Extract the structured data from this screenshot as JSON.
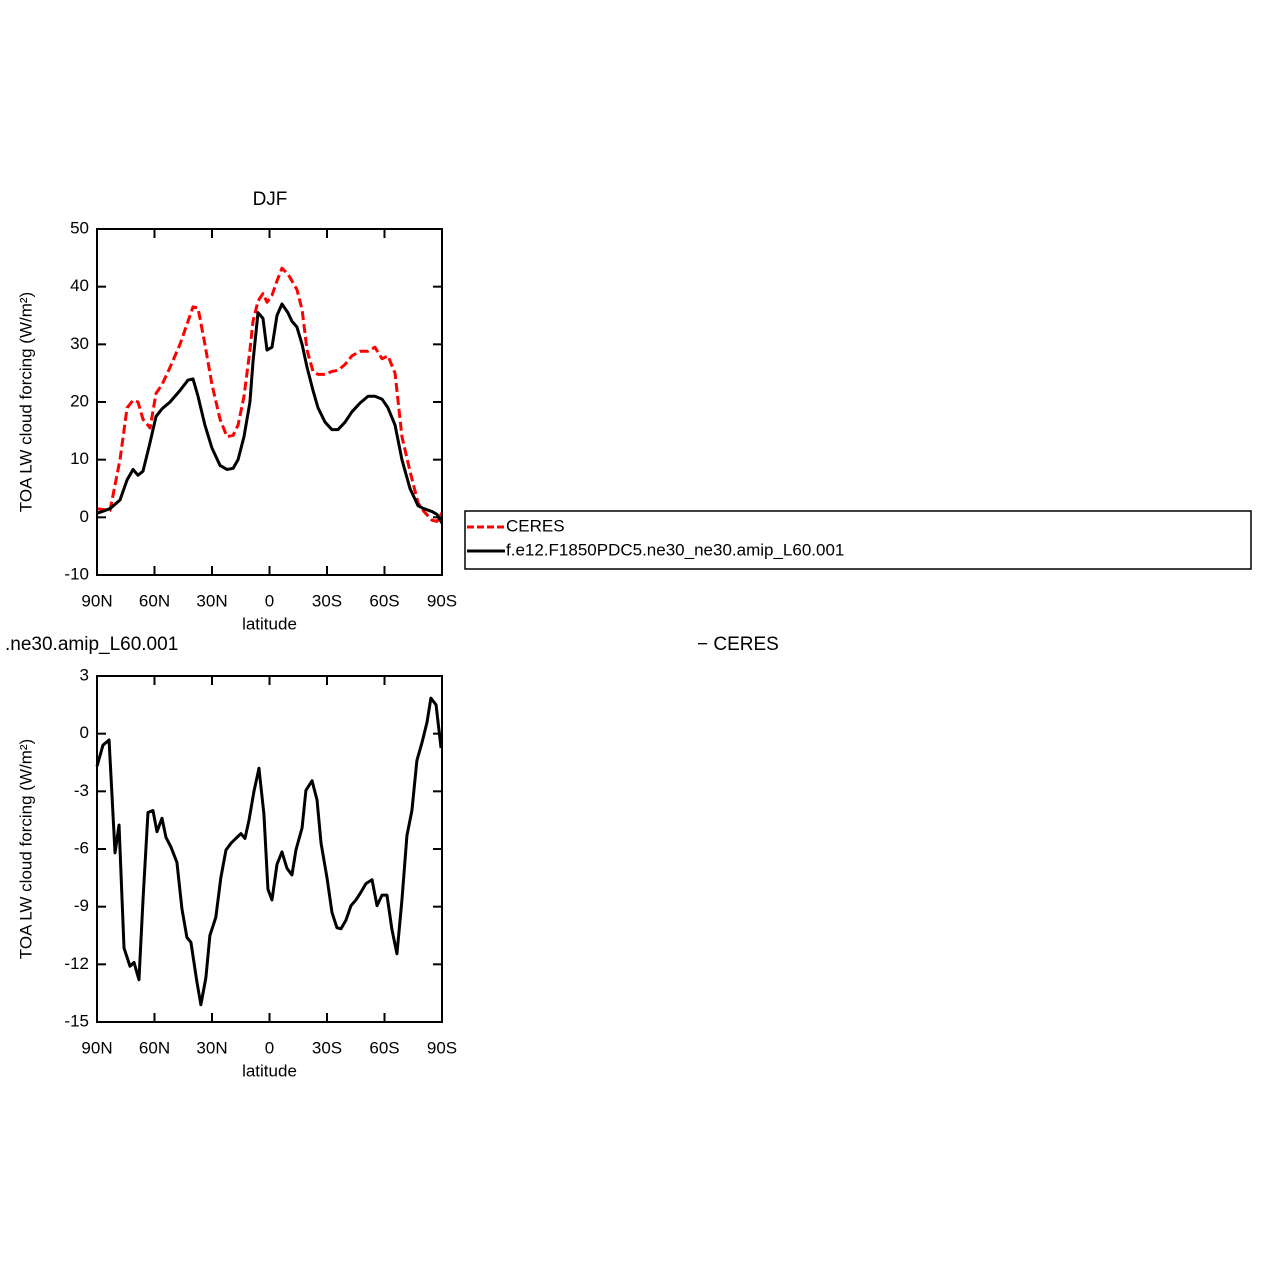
{
  "chart_data": [
    {
      "type": "line",
      "title": "DJF",
      "xlabel": "latitude",
      "ylabel": "TOA LW cloud forcing (W/m²)",
      "x": [
        90.0,
        83.2,
        78.0,
        74.3,
        71.2,
        68.6,
        66.0,
        62.3,
        59.2,
        56.1,
        51.9,
        46.7,
        42.5,
        39.9,
        37.3,
        33.7,
        30.0,
        25.8,
        22.2,
        19.0,
        16.4,
        13.3,
        10.2,
        8.6,
        6.0,
        3.4,
        1.3,
        -1.3,
        -3.9,
        -6.5,
        -9.6,
        -11.7,
        -14.3,
        -17.0,
        -19.6,
        -22.7,
        -25.3,
        -29.0,
        -32.6,
        -35.7,
        -39.4,
        -43.0,
        -47.2,
        -51.4,
        -55.0,
        -58.7,
        -61.8,
        -65.5,
        -69.1,
        -73.3,
        -77.5,
        -80.6,
        -84.8,
        -87.4,
        -90.0
      ],
      "series": [
        {
          "name": "CERES",
          "color": "#ff0000",
          "linestyle": "dashed",
          "values": [
            1.5,
            1.2,
            10,
            19,
            20.3,
            20,
            17,
            15.5,
            21.5,
            23,
            26,
            30,
            34,
            36.5,
            36.3,
            30,
            23,
            17,
            14,
            14.2,
            16,
            21,
            29,
            34,
            37.5,
            38.8,
            37.3,
            38.5,
            41,
            43.2,
            42.2,
            41,
            39.5,
            36,
            29,
            25.3,
            24.8,
            24.8,
            25.3,
            25.5,
            26.5,
            28,
            28.8,
            28.8,
            29.5,
            27.5,
            28,
            25,
            14,
            8,
            2.5,
            1,
            -0.5,
            -0.7,
            0.8
          ]
        },
        {
          "name": "f.e12.F1850PDC5.ne30_ne30.amip_L60.001",
          "color": "#000000",
          "linestyle": "solid",
          "values": [
            0.7,
            1.5,
            3,
            6.5,
            8.3,
            7.3,
            8,
            13,
            17.5,
            18.8,
            20,
            22,
            23.8,
            24,
            21,
            16,
            12,
            9,
            8.3,
            8.5,
            10,
            14,
            20,
            27,
            35.5,
            34.5,
            29,
            29.5,
            35,
            37,
            35.5,
            34,
            33,
            30,
            26,
            22,
            19,
            16.5,
            15.2,
            15.2,
            16.5,
            18.3,
            19.8,
            21,
            21,
            20.5,
            19,
            16,
            10,
            5,
            2,
            1.5,
            1,
            0.5,
            -1
          ]
        }
      ],
      "xlim": [
        90,
        -90
      ],
      "xticks": [
        {
          "value": 90,
          "label": "90N"
        },
        {
          "value": 60,
          "label": "60N"
        },
        {
          "value": 30,
          "label": "30N"
        },
        0,
        {
          "value": -30,
          "label": "30S"
        },
        {
          "value": -60,
          "label": "60S"
        },
        {
          "value": -90,
          "label": "90S"
        }
      ],
      "ylim": [
        -10,
        50
      ],
      "yticks": [
        -10,
        0,
        10,
        20,
        30,
        40,
        50
      ],
      "legend": "outside-right"
    },
    {
      "type": "line",
      "title": ".ne30.amip_L60.001",
      "title_suffix": "− CERES",
      "xlabel": "latitude",
      "ylabel": "TOA LW cloud forcing (W/m²)",
      "x": [
        90.0,
        86.9,
        83.7,
        80.6,
        78.5,
        75.9,
        72.8,
        70.7,
        68.1,
        66.0,
        63.4,
        60.8,
        58.7,
        56.1,
        54.0,
        51.4,
        48.3,
        45.7,
        43.1,
        41.0,
        37.9,
        35.8,
        33.2,
        31.1,
        28.0,
        25.4,
        22.7,
        20.1,
        17.0,
        14.9,
        12.8,
        10.7,
        8.1,
        5.5,
        2.9,
        0.8,
        -1.3,
        -3.9,
        -6.5,
        -9.1,
        -11.7,
        -13.8,
        -17.0,
        -19.0,
        -22.2,
        -24.8,
        -26.9,
        -30.0,
        -32.6,
        -35.2,
        -37.3,
        -39.9,
        -42.5,
        -45.1,
        -47.7,
        -50.3,
        -53.5,
        -56.1,
        -58.7,
        -61.3,
        -63.9,
        -66.5,
        -69.1,
        -71.7,
        -74.3,
        -76.9,
        -79.6,
        -82.2,
        -84.2,
        -86.9,
        -89.5
      ],
      "values": [
        -1.7,
        -0.6,
        -0.33,
        -6.2,
        -4.75,
        -11.15,
        -12.1,
        -11.9,
        -12.8,
        -8.65,
        -4.1,
        -4.0,
        -5.1,
        -4.4,
        -5.4,
        -5.9,
        -6.7,
        -9.1,
        -10.6,
        -10.85,
        -12.9,
        -14.1,
        -12.7,
        -10.5,
        -9.55,
        -7.5,
        -6.05,
        -5.7,
        -5.4,
        -5.2,
        -5.45,
        -4.5,
        -3.0,
        -1.8,
        -4.2,
        -8.1,
        -8.65,
        -6.8,
        -6.15,
        -7.0,
        -7.35,
        -6.05,
        -4.9,
        -2.95,
        -2.45,
        -3.45,
        -5.7,
        -7.5,
        -9.3,
        -10.1,
        -10.15,
        -9.7,
        -8.95,
        -8.65,
        -8.25,
        -7.8,
        -7.6,
        -8.95,
        -8.4,
        -8.4,
        -10.2,
        -11.45,
        -8.65,
        -5.3,
        -4.0,
        -1.4,
        -0.45,
        0.6,
        1.85,
        1.5,
        -0.75
      ],
      "color": "#000000",
      "xlim": [
        90,
        -90
      ],
      "xticks": [
        {
          "value": 90,
          "label": "90N"
        },
        {
          "value": 60,
          "label": "60N"
        },
        {
          "value": 30,
          "label": "30N"
        },
        0,
        {
          "value": -30,
          "label": "30S"
        },
        {
          "value": -60,
          "label": "60S"
        },
        {
          "value": -90,
          "label": "90S"
        }
      ],
      "ylim": [
        -15,
        3
      ],
      "yticks": [
        -15,
        -12,
        -9,
        -6,
        -3,
        0,
        3
      ]
    }
  ]
}
